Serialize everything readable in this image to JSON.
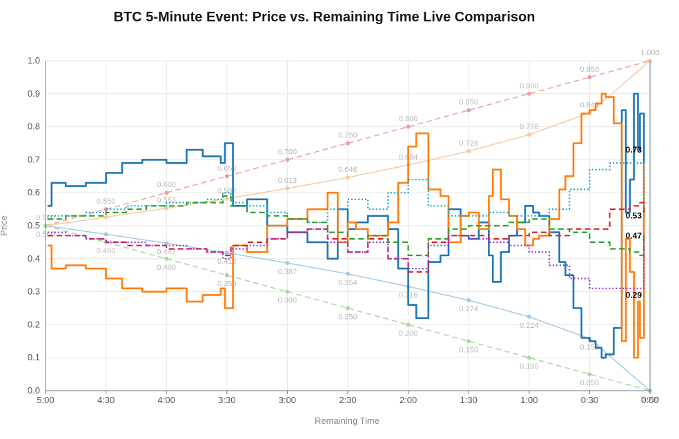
{
  "chart_data": {
    "type": "line",
    "title": "BTC 5-Minute Event: Price vs. Remaining Time Live Comparison",
    "xlabel": "Remaining Time",
    "ylabel": "Price",
    "x_ticks": [
      "5:00",
      "4:30",
      "4:00",
      "3:30",
      "3:00",
      "2:30",
      "2:00",
      "1:30",
      "1:00",
      "0:30",
      "0:00"
    ],
    "y_ticks": [
      "0.0",
      "0.1",
      "0.2",
      "0.3",
      "0.4",
      "0.5",
      "0.6",
      "0.7",
      "0.8",
      "0.9",
      "1.0"
    ],
    "ylim": [
      0,
      1
    ],
    "xlim_seconds_remaining": [
      300,
      0
    ],
    "grid": true,
    "reference_lines": [
      {
        "color": "#e8a0a0",
        "style": "dashed",
        "x": [
          300,
          270,
          240,
          210,
          180,
          150,
          120,
          90,
          60,
          30,
          0
        ],
        "y": [
          0.5,
          0.55,
          0.6,
          0.65,
          0.7,
          0.75,
          0.8,
          0.85,
          0.9,
          0.95,
          1.0
        ],
        "labels": [
          "0.500",
          "0.550",
          "0.600",
          "0.650",
          "0.700",
          "0.750",
          "0.800",
          "0.850",
          "0.900",
          "0.950",
          "1.000"
        ]
      },
      {
        "color": "#f8c9a0",
        "style": "solid",
        "x": [
          300,
          270,
          240,
          210,
          180,
          150,
          120,
          90,
          60,
          30,
          0
        ],
        "y": [
          0.5,
          0.526,
          0.553,
          0.582,
          0.613,
          0.646,
          0.684,
          0.726,
          0.776,
          0.842,
          1.0
        ],
        "labels": [
          "",
          "",
          "0.553",
          "0.582",
          "0.613",
          "0.646",
          "0.684",
          "0.726",
          "0.776",
          "0.842",
          ""
        ]
      },
      {
        "color": "#a8c8e0",
        "style": "solid",
        "x": [
          300,
          270,
          240,
          210,
          180,
          150,
          120,
          90,
          60,
          30,
          0
        ],
        "y": [
          0.5,
          0.474,
          0.447,
          0.418,
          0.387,
          0.354,
          0.316,
          0.274,
          0.224,
          0.158,
          0.0
        ],
        "labels": [
          "",
          "",
          "0.447",
          "0.418",
          "0.387",
          "0.354",
          "0.316",
          "0.274",
          "0.224",
          "0.158",
          ""
        ]
      },
      {
        "color": "#a8d8a0",
        "style": "dashed",
        "x": [
          300,
          270,
          240,
          210,
          180,
          150,
          120,
          90,
          60,
          30,
          0
        ],
        "y": [
          0.5,
          0.45,
          0.4,
          0.35,
          0.3,
          0.25,
          0.2,
          0.15,
          0.1,
          0.05,
          0.0
        ],
        "labels": [
          "0.500",
          "0.450",
          "0.400",
          "0.350",
          "0.300",
          "0.250",
          "0.200",
          "0.150",
          "0.100",
          "0.050",
          "0.000"
        ]
      }
    ],
    "series": [
      {
        "color": "#1f77b4",
        "style": "solid",
        "x": [
          299,
          297,
          290,
          280,
          270,
          262,
          252,
          240,
          230,
          222,
          213,
          211,
          207,
          200,
          190,
          180,
          170,
          160,
          155,
          150,
          146,
          140,
          130,
          125,
          120,
          116,
          110,
          104,
          100,
          94,
          90,
          85,
          80,
          78,
          74,
          70,
          66,
          62,
          58,
          55,
          50,
          45,
          42,
          38,
          34,
          30,
          27,
          24,
          22,
          18,
          14,
          12,
          10,
          8,
          6,
          5,
          3
        ],
        "y": [
          0.56,
          0.63,
          0.62,
          0.63,
          0.66,
          0.69,
          0.7,
          0.69,
          0.73,
          0.71,
          0.69,
          0.75,
          0.56,
          0.58,
          0.5,
          0.48,
          0.45,
          0.4,
          0.55,
          0.49,
          0.51,
          0.53,
          0.49,
          0.37,
          0.26,
          0.22,
          0.39,
          0.41,
          0.55,
          0.47,
          0.46,
          0.51,
          0.41,
          0.33,
          0.42,
          0.47,
          0.51,
          0.56,
          0.54,
          0.53,
          0.48,
          0.39,
          0.35,
          0.25,
          0.16,
          0.15,
          0.13,
          0.1,
          0.11,
          0.19,
          0.85,
          0.54,
          0.64,
          0.9,
          0.73,
          0.84,
          0.31
        ]
      },
      {
        "color": "#ff7f0e",
        "style": "solid",
        "x": [
          299,
          297,
          290,
          280,
          270,
          262,
          252,
          240,
          230,
          222,
          213,
          211,
          207,
          200,
          190,
          180,
          170,
          160,
          155,
          150,
          146,
          140,
          130,
          125,
          120,
          116,
          110,
          104,
          100,
          94,
          90,
          85,
          80,
          78,
          74,
          70,
          66,
          62,
          58,
          55,
          50,
          45,
          42,
          38,
          34,
          30,
          27,
          24,
          22,
          18,
          14,
          12,
          10,
          8,
          6,
          5,
          3
        ],
        "y": [
          0.44,
          0.37,
          0.38,
          0.37,
          0.34,
          0.31,
          0.3,
          0.31,
          0.27,
          0.29,
          0.31,
          0.25,
          0.44,
          0.42,
          0.5,
          0.52,
          0.55,
          0.6,
          0.45,
          0.51,
          0.49,
          0.47,
          0.51,
          0.63,
          0.74,
          0.78,
          0.61,
          0.59,
          0.45,
          0.53,
          0.54,
          0.49,
          0.59,
          0.67,
          0.58,
          0.53,
          0.49,
          0.44,
          0.46,
          0.47,
          0.52,
          0.61,
          0.65,
          0.75,
          0.84,
          0.85,
          0.87,
          0.9,
          0.89,
          0.81,
          0.15,
          0.46,
          0.36,
          0.1,
          0.27,
          0.16,
          0.69
        ]
      },
      {
        "color": "#17a2c6",
        "style": "dotted",
        "x": [
          299,
          290,
          280,
          270,
          260,
          250,
          240,
          230,
          220,
          212,
          208,
          200,
          190,
          180,
          170,
          160,
          150,
          140,
          130,
          120,
          110,
          100,
          90,
          80,
          70,
          60,
          50,
          40,
          30,
          20,
          10,
          5,
          3
        ],
        "y": [
          0.53,
          0.53,
          0.54,
          0.55,
          0.56,
          0.56,
          0.57,
          0.57,
          0.58,
          0.6,
          0.57,
          0.56,
          0.54,
          0.52,
          0.51,
          0.55,
          0.58,
          0.55,
          0.6,
          0.64,
          0.56,
          0.53,
          0.53,
          0.54,
          0.53,
          0.53,
          0.55,
          0.61,
          0.67,
          0.69,
          0.69,
          0.69,
          0.53
        ]
      },
      {
        "color": "#d62728",
        "style": "dashed",
        "x": [
          299,
          290,
          280,
          270,
          260,
          250,
          240,
          230,
          220,
          212,
          208,
          200,
          190,
          180,
          170,
          160,
          150,
          140,
          130,
          120,
          110,
          100,
          90,
          80,
          70,
          60,
          50,
          40,
          30,
          20,
          10,
          5,
          3
        ],
        "y": [
          0.47,
          0.47,
          0.46,
          0.45,
          0.44,
          0.44,
          0.43,
          0.43,
          0.42,
          0.41,
          0.44,
          0.45,
          0.46,
          0.48,
          0.49,
          0.46,
          0.42,
          0.46,
          0.4,
          0.36,
          0.45,
          0.47,
          0.47,
          0.46,
          0.47,
          0.48,
          0.47,
          0.49,
          0.49,
          0.55,
          0.56,
          0.57,
          0.53
        ]
      },
      {
        "color": "#2ca02c",
        "style": "dashed",
        "x": [
          299,
          290,
          280,
          270,
          260,
          250,
          240,
          230,
          220,
          212,
          208,
          200,
          190,
          180,
          170,
          160,
          150,
          140,
          130,
          120,
          110,
          100,
          90,
          80,
          70,
          60,
          50,
          40,
          30,
          20,
          10,
          5,
          3
        ],
        "y": [
          0.52,
          0.53,
          0.53,
          0.54,
          0.55,
          0.56,
          0.56,
          0.57,
          0.57,
          0.59,
          0.56,
          0.54,
          0.53,
          0.52,
          0.51,
          0.48,
          0.46,
          0.47,
          0.45,
          0.41,
          0.46,
          0.49,
          0.5,
          0.5,
          0.51,
          0.52,
          0.49,
          0.48,
          0.45,
          0.43,
          0.42,
          0.41,
          0.47
        ]
      },
      {
        "color": "#9b30d9",
        "style": "dotted",
        "x": [
          299,
          290,
          280,
          270,
          260,
          250,
          240,
          230,
          220,
          212,
          208,
          200,
          190,
          180,
          170,
          160,
          150,
          140,
          130,
          120,
          110,
          100,
          90,
          80,
          70,
          60,
          50,
          40,
          30,
          20,
          10,
          5,
          3
        ],
        "y": [
          0.48,
          0.47,
          0.46,
          0.45,
          0.45,
          0.44,
          0.44,
          0.43,
          0.42,
          0.4,
          0.43,
          0.44,
          0.46,
          0.48,
          0.49,
          0.45,
          0.42,
          0.45,
          0.4,
          0.37,
          0.44,
          0.47,
          0.46,
          0.45,
          0.44,
          0.42,
          0.38,
          0.34,
          0.31,
          0.31,
          0.31,
          0.31,
          0.47
        ]
      }
    ],
    "end_labels": [
      {
        "text": "0.73",
        "y": 0.73
      },
      {
        "text": "0.53",
        "y": 0.53
      },
      {
        "text": "0.47",
        "y": 0.47
      },
      {
        "text": "0.29",
        "y": 0.29
      }
    ]
  }
}
